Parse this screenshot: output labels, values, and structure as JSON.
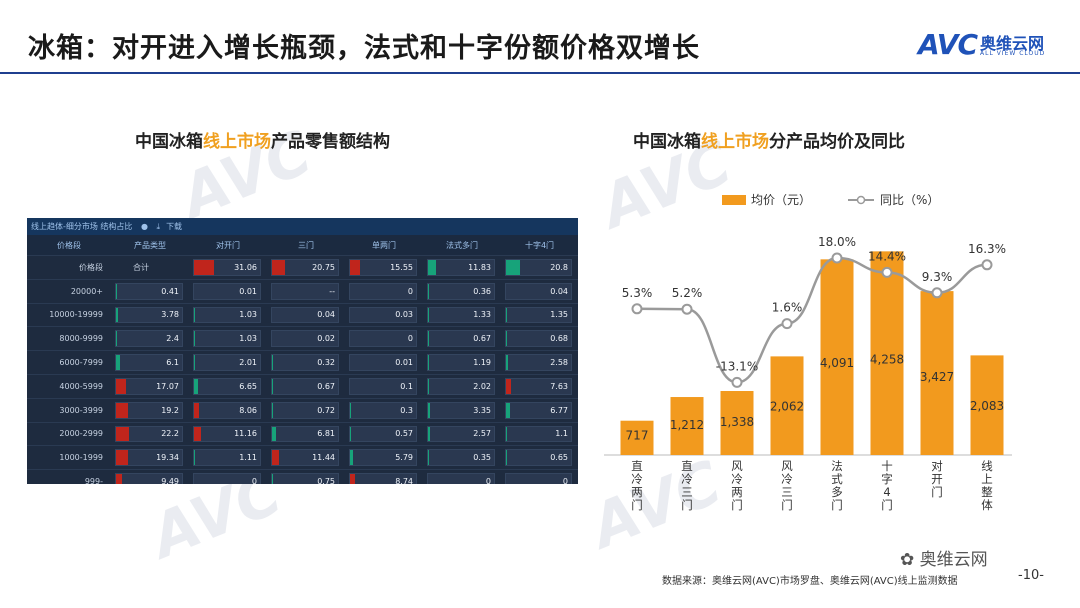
{
  "header": {
    "title": "冰箱：对开进入增长瓶颈，法式和十字份额价格双增长",
    "logo_text": "AVC",
    "logo_cn": "奥维云网",
    "logo_en": "ALL VIEW CLOUD"
  },
  "left": {
    "title_pre": "中国冰箱",
    "title_hl": "线上市场",
    "title_post": "产品零售额结构",
    "panel": {
      "tab_label": "线上趋体-细分市场 结构占比",
      "download_label": "下载",
      "corner_header": "产品类型",
      "row_header_label": "价格段",
      "columns": [
        "对开门",
        "三门",
        "单两门",
        "法式多门",
        "十字4门"
      ],
      "rows": [
        {
          "label": "合计",
          "values": [
            "31.06",
            "20.75",
            "15.55",
            "11.83",
            "20.8"
          ]
        },
        {
          "label": "20000+",
          "values": [
            "0.41",
            "0.01",
            "--",
            "0",
            "0.36",
            "0.04"
          ]
        },
        {
          "label": "10000-19999",
          "values": [
            "3.78",
            "1.03",
            "0.04",
            "0.03",
            "1.33",
            "1.35"
          ]
        },
        {
          "label": "8000-9999",
          "values": [
            "2.4",
            "1.03",
            "0.02",
            "0",
            "0.67",
            "0.68"
          ]
        },
        {
          "label": "6000-7999",
          "values": [
            "6.1",
            "2.01",
            "0.32",
            "0.01",
            "1.19",
            "2.58"
          ]
        },
        {
          "label": "4000-5999",
          "values": [
            "17.07",
            "6.65",
            "0.67",
            "0.1",
            "2.02",
            "7.63"
          ]
        },
        {
          "label": "3000-3999",
          "values": [
            "19.2",
            "8.06",
            "0.72",
            "0.3",
            "3.35",
            "6.77"
          ]
        },
        {
          "label": "2000-2999",
          "values": [
            "22.2",
            "11.16",
            "6.81",
            "0.57",
            "2.57",
            "1.1"
          ]
        },
        {
          "label": "1000-1999",
          "values": [
            "19.34",
            "1.11",
            "11.44",
            "5.79",
            "0.35",
            "0.65"
          ]
        },
        {
          "label": "999-",
          "values": [
            "9.49",
            "0",
            "0.75",
            "8.74",
            "0",
            "0"
          ]
        }
      ],
      "total_label": "合计",
      "colors": {
        "red": "#c0251c",
        "green": "#17a37a"
      }
    }
  },
  "chart_data": {
    "type": "bar",
    "title_pre": "中国冰箱",
    "title_hl": "线上市场",
    "title_post": "分产品均价及同比",
    "categories": [
      "直冷两门",
      "直冷三门",
      "风冷两门",
      "风冷三门",
      "法式多门",
      "十字4门",
      "对开门",
      "线上整体"
    ],
    "series": [
      {
        "name": "均价（元）",
        "type": "bar",
        "values": [
          717,
          1212,
          1338,
          2062,
          4091,
          4258,
          3427,
          2083
        ],
        "color": "#f29a1e"
      },
      {
        "name": "同比（%）",
        "type": "line",
        "values": [
          5.3,
          5.2,
          -13.1,
          1.6,
          18.0,
          14.4,
          9.3,
          16.3
        ],
        "labels": [
          "5.3%",
          "5.2%",
          "-13.1%",
          "1.6%",
          "18.0%",
          "14.4%",
          "9.3%",
          "16.3%"
        ],
        "color": "#9a9a9a"
      }
    ],
    "bar_labels": [
      "717",
      "1,212",
      "1,338",
      "2,062",
      "4,091",
      "4,258",
      "3,427",
      "2,083"
    ],
    "ylim_bar": [
      0,
      4600
    ],
    "ylim_line": [
      -20,
      20
    ],
    "legend": "top"
  },
  "footer": {
    "source": "数据来源：奥维云网(AVC)市场罗盘、奥维云网(AVC)线上监测数据",
    "page": "-10-",
    "wechat": "奥维云网"
  }
}
